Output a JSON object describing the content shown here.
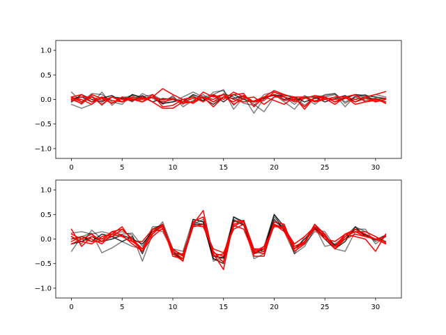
{
  "figure": {
    "background": "#ffffff"
  },
  "chart_data": [
    {
      "type": "line",
      "title": "",
      "xlabel": "",
      "ylabel": "",
      "xlim": [
        -1.55,
        32.55
      ],
      "ylim": [
        -1.2,
        1.2
      ],
      "xticks": [
        0,
        5,
        10,
        15,
        20,
        25,
        30
      ],
      "yticks": [
        -1.0,
        -0.5,
        0.0,
        0.5,
        1.0
      ],
      "xtick_labels": [
        "0",
        "5",
        "10",
        "15",
        "20",
        "25",
        "30"
      ],
      "ytick_labels": [
        "−1.0",
        "−0.5",
        "0.0",
        "0.5",
        "1.0"
      ],
      "grid": false,
      "x": [
        0,
        1,
        2,
        3,
        4,
        5,
        6,
        7,
        8,
        9,
        10,
        11,
        12,
        13,
        14,
        15,
        16,
        17,
        18,
        19,
        20,
        21,
        22,
        23,
        24,
        25,
        26,
        27,
        28,
        29,
        30,
        31
      ],
      "series": [
        {
          "color": "#000000",
          "opacity": 0.5,
          "values": [
            0.15,
            -0.05,
            0.12,
            0.1,
            -0.05,
            -0.1,
            0.1,
            0.05,
            0.1,
            -0.02,
            0.05,
            -0.1,
            0.08,
            -0.05,
            0.15,
            0.18,
            -0.2,
            0.05,
            -0.28,
            0.02,
            0.1,
            -0.05,
            -0.2,
            0.05,
            -0.1,
            0.05,
            0.1,
            -0.15,
            0.08,
            0.05,
            0.1,
            0.05
          ]
        },
        {
          "color": "#000000",
          "opacity": 0.5,
          "values": [
            -0.1,
            -0.18,
            -0.1,
            0.15,
            -0.12,
            0.05,
            -0.05,
            0.12,
            0.02,
            -0.08,
            -0.05,
            0.05,
            0.15,
            0.05,
            0.1,
            0.2,
            -0.12,
            0.08,
            -0.1,
            -0.25,
            0.05,
            0.1,
            0.05,
            -0.12,
            0.05,
            0.08,
            0.12,
            -0.05,
            0.05,
            -0.02,
            0.03,
            -0.05
          ]
        },
        {
          "color": "#000000",
          "opacity": 0.5,
          "values": [
            0.05,
            -0.1,
            0.08,
            -0.12,
            0.05,
            0.03,
            0.08,
            -0.05,
            0.1,
            -0.1,
            0.08,
            -0.15,
            -0.02,
            0.1,
            -0.05,
            0.12,
            0.05,
            -0.08,
            -0.12,
            0.1,
            0.15,
            0.05,
            -0.1,
            0.08,
            -0.05,
            0.1,
            0.12,
            -0.08,
            0.05,
            0.1,
            -0.05,
            0.0
          ]
        },
        {
          "color": "#000000",
          "opacity": 0.8,
          "values": [
            0.02,
            0.05,
            -0.05,
            0.03,
            0.08,
            -0.05,
            0.1,
            0.02,
            0.05,
            -0.08,
            -0.05,
            0.0,
            0.05,
            -0.02,
            0.08,
            -0.05,
            0.1,
            0.0,
            -0.05,
            0.05,
            0.08,
            0.0,
            0.05,
            -0.05,
            0.02,
            0.05,
            -0.05,
            0.02,
            0.1,
            0.08,
            0.05,
            0.02
          ]
        },
        {
          "color": "#000000",
          "opacity": 0.8,
          "values": [
            -0.05,
            0.1,
            0.0,
            -0.05,
            0.05,
            0.02,
            -0.03,
            0.08,
            -0.05,
            0.02,
            0.0,
            -0.05,
            0.1,
            0.02,
            -0.1,
            0.05,
            0.02,
            0.08,
            -0.05,
            0.02,
            0.1,
            0.05,
            -0.02,
            0.05,
            0.05,
            -0.05,
            0.02,
            0.08,
            -0.05,
            0.05,
            0.0,
            0.02
          ]
        },
        {
          "color": "#ff0000",
          "opacity": 1,
          "values": [
            0.05,
            0.1,
            -0.05,
            0.05,
            -0.08,
            0.05,
            0.02,
            -0.05,
            0.1,
            -0.15,
            -0.12,
            0.0,
            0.05,
            -0.05,
            0.1,
            0.0,
            0.15,
            0.05,
            -0.05,
            -0.02,
            0.15,
            0.08,
            0.05,
            -0.2,
            0.05,
            0.02,
            -0.1,
            0.05,
            0.1,
            -0.05,
            0.02,
            -0.08
          ]
        },
        {
          "color": "#ff0000",
          "opacity": 1,
          "values": [
            -0.02,
            0.05,
            0.05,
            -0.1,
            0.05,
            -0.05,
            0.05,
            0.02,
            0.05,
            0.22,
            0.1,
            0.0,
            -0.08,
            0.05,
            -0.05,
            0.05,
            0.1,
            0.12,
            -0.15,
            0.05,
            0.18,
            0.1,
            0.02,
            -0.15,
            0.05,
            0.05,
            -0.05,
            0.05,
            0.0,
            0.05,
            0.1,
            0.16
          ]
        },
        {
          "color": "#ff0000",
          "opacity": 1,
          "values": [
            0.0,
            -0.08,
            0.1,
            0.02,
            -0.08,
            0.05,
            0.0,
            -0.05,
            0.05,
            0.0,
            0.02,
            -0.08,
            -0.05,
            0.15,
            0.05,
            0.1,
            -0.1,
            0.02,
            0.05,
            -0.1,
            0.05,
            0.05,
            -0.05,
            0.02,
            0.08,
            0.05,
            -0.05,
            0.05,
            0.0,
            0.05,
            -0.05,
            0.0
          ]
        },
        {
          "color": "#ff0000",
          "opacity": 1,
          "values": [
            0.05,
            -0.05,
            0.05,
            -0.02,
            0.05,
            0.0,
            -0.02,
            0.05,
            -0.05,
            -0.18,
            -0.18,
            -0.05,
            -0.05,
            0.05,
            -0.15,
            0.05,
            -0.05,
            0.08,
            -0.05,
            0.05,
            -0.02,
            -0.1,
            0.05,
            0.05,
            -0.05,
            0.0,
            0.05,
            0.05,
            -0.1,
            -0.05,
            -0.02,
            -0.05
          ]
        },
        {
          "color": "#ff0000",
          "opacity": 1,
          "values": [
            0.02,
            0.0,
            -0.1,
            0.05,
            -0.02,
            -0.05,
            0.02,
            0.0,
            0.05,
            -0.05,
            0.0,
            -0.05,
            0.02,
            0.05,
            0.0,
            0.1,
            0.0,
            -0.05,
            -0.03,
            0.05,
            0.1,
            -0.02,
            0.0,
            0.05,
            -0.03,
            0.02,
            0.0,
            0.03,
            -0.05,
            0.02,
            0.0,
            0.02
          ]
        }
      ]
    },
    {
      "type": "line",
      "title": "",
      "xlabel": "",
      "ylabel": "",
      "xlim": [
        -1.55,
        32.55
      ],
      "ylim": [
        -1.2,
        1.2
      ],
      "xticks": [
        0,
        5,
        10,
        15,
        20,
        25,
        30
      ],
      "yticks": [
        -1.0,
        -0.5,
        0.0,
        0.5,
        1.0
      ],
      "xtick_labels": [
        "0",
        "5",
        "10",
        "15",
        "20",
        "25",
        "30"
      ],
      "ytick_labels": [
        "−1.0",
        "−0.5",
        "0.0",
        "0.5",
        "1.0"
      ],
      "grid": false,
      "x": [
        0,
        1,
        2,
        3,
        4,
        5,
        6,
        7,
        8,
        9,
        10,
        11,
        12,
        13,
        14,
        15,
        16,
        17,
        18,
        19,
        20,
        21,
        22,
        23,
        24,
        25,
        26,
        27,
        28,
        29,
        30,
        31
      ],
      "series": [
        {
          "color": "#000000",
          "opacity": 0.5,
          "values": [
            0.12,
            0.15,
            0.1,
            0.15,
            0.1,
            0.15,
            0.08,
            -0.45,
            0.1,
            0.35,
            -0.2,
            -0.25,
            0.4,
            0.35,
            -0.45,
            -0.35,
            0.45,
            0.3,
            -0.25,
            -0.15,
            0.5,
            0.15,
            -0.3,
            0.05,
            0.25,
            -0.15,
            -0.1,
            0.05,
            0.25,
            0.15,
            0.05,
            -0.05
          ]
        },
        {
          "color": "#000000",
          "opacity": 0.5,
          "values": [
            -0.25,
            0.05,
            0.12,
            -0.28,
            -0.18,
            -0.05,
            -0.15,
            -0.2,
            0.25,
            0.25,
            -0.3,
            -0.4,
            0.35,
            0.3,
            -0.4,
            -0.45,
            0.3,
            0.35,
            -0.3,
            -0.25,
            0.45,
            0.2,
            -0.25,
            -0.1,
            0.15,
            0.1,
            -0.2,
            -0.25,
            0.15,
            0.1,
            -0.05,
            0.05
          ]
        },
        {
          "color": "#000000",
          "opacity": 0.5,
          "values": [
            0.05,
            -0.1,
            0.18,
            0.0,
            0.05,
            0.1,
            0.12,
            -0.15,
            0.2,
            0.15,
            -0.25,
            -0.35,
            0.3,
            0.4,
            -0.35,
            -0.4,
            0.4,
            0.3,
            -0.4,
            -0.3,
            0.35,
            0.25,
            -0.3,
            -0.15,
            0.2,
            0.15,
            -0.15,
            0.0,
            0.2,
            0.2,
            -0.1,
            0.05
          ]
        },
        {
          "color": "#000000",
          "opacity": 0.8,
          "values": [
            0.0,
            0.05,
            -0.05,
            0.1,
            0.05,
            -0.05,
            0.05,
            -0.3,
            0.2,
            0.3,
            -0.25,
            -0.45,
            0.4,
            0.35,
            -0.4,
            -0.5,
            0.45,
            0.35,
            -0.3,
            -0.2,
            0.5,
            0.25,
            -0.2,
            -0.05,
            0.3,
            0.0,
            -0.2,
            -0.05,
            0.25,
            0.05,
            0.0,
            0.05
          ]
        },
        {
          "color": "#000000",
          "opacity": 0.8,
          "values": [
            -0.1,
            -0.05,
            0.05,
            -0.05,
            0.0,
            0.08,
            0.0,
            -0.1,
            0.15,
            0.25,
            -0.3,
            -0.3,
            0.3,
            0.3,
            -0.35,
            -0.38,
            0.38,
            0.28,
            -0.28,
            -0.2,
            0.4,
            0.18,
            -0.2,
            0.0,
            0.22,
            0.05,
            -0.12,
            0.0,
            0.2,
            0.08,
            -0.02,
            0.08
          ]
        },
        {
          "color": "#ff0000",
          "opacity": 1,
          "values": [
            0.2,
            -0.15,
            0.05,
            0.0,
            0.15,
            0.2,
            0.0,
            -0.25,
            0.15,
            0.3,
            -0.3,
            -0.45,
            0.35,
            0.45,
            -0.3,
            -0.62,
            0.35,
            0.38,
            -0.35,
            -0.35,
            0.35,
            0.3,
            -0.25,
            -0.1,
            0.3,
            0.1,
            -0.2,
            0.1,
            0.05,
            0.0,
            -0.25,
            0.1
          ]
        },
        {
          "color": "#ff0000",
          "opacity": 1,
          "values": [
            0.05,
            -0.05,
            -0.1,
            0.05,
            0.1,
            0.25,
            -0.05,
            -0.2,
            0.1,
            0.28,
            -0.35,
            -0.4,
            0.25,
            0.3,
            -0.25,
            -0.48,
            0.3,
            0.35,
            -0.25,
            -0.3,
            0.28,
            0.2,
            -0.2,
            -0.05,
            0.25,
            0.05,
            -0.15,
            0.1,
            0.2,
            0.1,
            0.0,
            0.05
          ]
        },
        {
          "color": "#ff0000",
          "opacity": 1,
          "values": [
            -0.05,
            0.05,
            0.0,
            -0.1,
            0.1,
            0.05,
            -0.05,
            -0.05,
            0.2,
            0.25,
            -0.2,
            -0.35,
            0.3,
            0.58,
            -0.35,
            -0.3,
            0.28,
            0.2,
            -0.3,
            -0.15,
            0.25,
            0.25,
            -0.15,
            -0.05,
            0.2,
            0.0,
            -0.05,
            0.1,
            0.15,
            0.15,
            0.05,
            -0.08
          ]
        },
        {
          "color": "#ff0000",
          "opacity": 1,
          "values": [
            0.1,
            0.0,
            -0.05,
            -0.05,
            0.05,
            0.2,
            0.0,
            -0.2,
            0.15,
            0.2,
            -0.25,
            -0.4,
            0.25,
            0.3,
            -0.28,
            -0.35,
            0.25,
            0.38,
            -0.2,
            -0.2,
            0.3,
            0.15,
            -0.2,
            -0.08,
            0.3,
            0.08,
            -0.2,
            0.05,
            0.15,
            0.05,
            0.0,
            -0.05
          ]
        },
        {
          "color": "#ff0000",
          "opacity": 1,
          "values": [
            -0.1,
            0.0,
            0.1,
            -0.05,
            0.15,
            0.08,
            -0.1,
            -0.25,
            0.05,
            0.22,
            -0.22,
            -0.32,
            0.28,
            0.25,
            -0.2,
            -0.28,
            0.2,
            0.3,
            -0.22,
            -0.25,
            0.3,
            0.22,
            -0.1,
            0.05,
            0.25,
            0.05,
            -0.2,
            0.0,
            0.1,
            0.05,
            0.0,
            -0.1
          ]
        }
      ]
    }
  ]
}
